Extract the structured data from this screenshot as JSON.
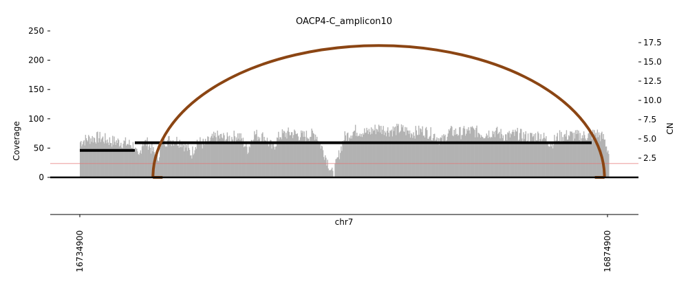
{
  "chart_data": {
    "type": "area",
    "title": "OACP4-C_amplicon10",
    "xlabel": "chr7",
    "ylabel_left": "Coverage",
    "ylabel_right": "CN",
    "x_ticks": [
      "16734900",
      "16874900"
    ],
    "x_range": [
      16726900,
      16883500
    ],
    "y_left_ticks": [
      "0",
      "50",
      "100",
      "150",
      "200",
      "250"
    ],
    "y_left_range": [
      0,
      250
    ],
    "y_right_ticks": [
      "2.5",
      "5.0",
      "7.5",
      "10.0",
      "12.5",
      "15.0",
      "17.5"
    ],
    "y_right_range": [
      0,
      17.9
    ],
    "coverage_start": 16734900,
    "coverage_end": 16875300,
    "coverage_profile": [
      [
        16734900,
        60
      ],
      [
        16737000,
        66
      ],
      [
        16740000,
        68
      ],
      [
        16743000,
        62
      ],
      [
        16746000,
        60
      ],
      [
        16749000,
        55
      ],
      [
        16750500,
        30
      ],
      [
        16751500,
        60
      ],
      [
        16753000,
        58
      ],
      [
        16755500,
        32
      ],
      [
        16757000,
        62
      ],
      [
        16760000,
        64
      ],
      [
        16762000,
        60
      ],
      [
        16764500,
        40
      ],
      [
        16766000,
        62
      ],
      [
        16768000,
        56
      ],
      [
        16771000,
        70
      ],
      [
        16774000,
        66
      ],
      [
        16777000,
        72
      ],
      [
        16779500,
        48
      ],
      [
        16781000,
        74
      ],
      [
        16784000,
        68
      ],
      [
        16786000,
        50
      ],
      [
        16788000,
        72
      ],
      [
        16791000,
        76
      ],
      [
        16794000,
        70
      ],
      [
        16797500,
        74
      ],
      [
        16800000,
        38
      ],
      [
        16802000,
        3
      ],
      [
        16803500,
        35
      ],
      [
        16805000,
        68
      ],
      [
        16808000,
        80
      ],
      [
        16811000,
        76
      ],
      [
        16814000,
        84
      ],
      [
        16817000,
        80
      ],
      [
        16820000,
        82
      ],
      [
        16823000,
        76
      ],
      [
        16826000,
        80
      ],
      [
        16829000,
        72
      ],
      [
        16831000,
        62
      ],
      [
        16833000,
        78
      ],
      [
        16836000,
        76
      ],
      [
        16839000,
        80
      ],
      [
        16842000,
        74
      ],
      [
        16845000,
        78
      ],
      [
        16848000,
        70
      ],
      [
        16851000,
        74
      ],
      [
        16854000,
        68
      ],
      [
        16857000,
        72
      ],
      [
        16860000,
        58
      ],
      [
        16862000,
        70
      ],
      [
        16865000,
        72
      ],
      [
        16868000,
        70
      ],
      [
        16870000,
        72
      ],
      [
        16872000,
        75
      ],
      [
        16874000,
        66
      ],
      [
        16875300,
        40
      ]
    ],
    "segments": [
      {
        "start": 16734900,
        "end": 16749500,
        "cn": 3.5
      },
      {
        "start": 16749500,
        "end": 16870700,
        "cn": 4.5
      }
    ],
    "cn_threshold": 1.8,
    "breakpoint": {
      "start": 16754300,
      "end": 16874100,
      "height": 225
    },
    "colors": {
      "coverage": "#b2b2b2",
      "segment": "#000000",
      "arc": "#8b4513",
      "threshold": "#e57373"
    }
  }
}
